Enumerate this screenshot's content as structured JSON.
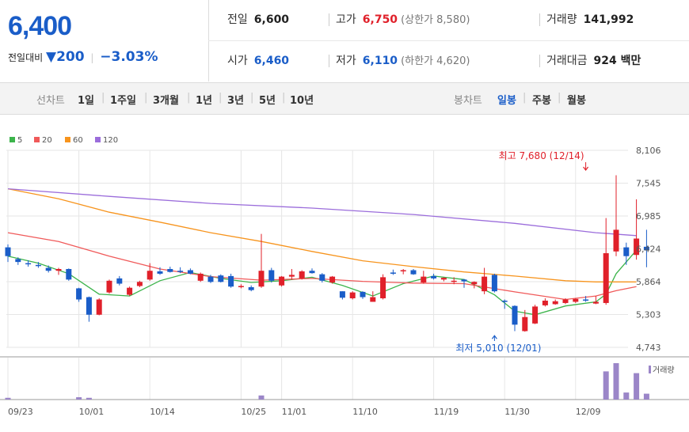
{
  "quote": {
    "price": "6,400",
    "change_label": "전일대비",
    "change_arrow": "▼",
    "change_value": "200",
    "change_pct": "−3.03%",
    "prev_label": "전일",
    "prev_value": "6,600",
    "high_label": "고가",
    "high_value": "6,750",
    "upper_limit": "(상한가 8,580)",
    "volume_label": "거래량",
    "volume_value": "141,992",
    "open_label": "시가",
    "open_value": "6,460",
    "low_label": "저가",
    "low_value": "6,110",
    "lower_limit": "(하한가 4,620)",
    "amount_label": "거래대금",
    "amount_value": "924 백만"
  },
  "toolbar": {
    "line_chart_label": "선차트",
    "periods": [
      "1일",
      "1주일",
      "3개월",
      "1년",
      "3년",
      "5년",
      "10년"
    ],
    "candle_label": "봉차트",
    "candle_types": [
      "일봉",
      "주봉",
      "월봉"
    ],
    "active_candle": "일봉"
  },
  "colors": {
    "up": "#e0202a",
    "down": "#1a5dc8",
    "ma5": "#3cb44b",
    "ma20": "#f05a5a",
    "ma60": "#f7941d",
    "ma120": "#9b6ddb",
    "volume": "#9b86c8"
  },
  "chart_data": {
    "type": "candlestick",
    "legend": [
      "5",
      "20",
      "60",
      "120"
    ],
    "y_ticks": [
      "8,106",
      "7,545",
      "6,985",
      "6,424",
      "5,864",
      "5,303",
      "4,743"
    ],
    "ylim": [
      4743,
      8106
    ],
    "x_ticks": [
      "09/23",
      "10/01",
      "10/14",
      "10/25",
      "11/01",
      "11/10",
      "11/19",
      "11/30",
      "12/09"
    ],
    "x_tick_index": [
      0,
      7,
      14,
      23,
      27,
      34,
      42,
      49,
      56
    ],
    "volume_label": "거래량",
    "annotations": [
      {
        "text": "최고 7,680 (12/14)",
        "index": 57,
        "value": 7680,
        "pos": "above"
      },
      {
        "text": "최저 5,010 (12/01)",
        "index": 48,
        "value": 5010,
        "pos": "below"
      }
    ],
    "candles": [
      {
        "o": 6450,
        "h": 6500,
        "l": 6200,
        "c": 6300
      },
      {
        "o": 6250,
        "h": 6280,
        "l": 6150,
        "c": 6200
      },
      {
        "o": 6180,
        "h": 6230,
        "l": 6120,
        "c": 6170
      },
      {
        "o": 6150,
        "h": 6200,
        "l": 6100,
        "c": 6140
      },
      {
        "o": 6100,
        "h": 6140,
        "l": 6020,
        "c": 6050
      },
      {
        "o": 6050,
        "h": 6100,
        "l": 5980,
        "c": 6080
      },
      {
        "o": 6080,
        "h": 6090,
        "l": 5880,
        "c": 5900
      },
      {
        "o": 5750,
        "h": 5760,
        "l": 5520,
        "c": 5560
      },
      {
        "o": 5600,
        "h": 5610,
        "l": 5180,
        "c": 5300
      },
      {
        "o": 5300,
        "h": 5580,
        "l": 5290,
        "c": 5560
      },
      {
        "o": 5680,
        "h": 5900,
        "l": 5660,
        "c": 5880
      },
      {
        "o": 5920,
        "h": 5960,
        "l": 5800,
        "c": 5830
      },
      {
        "o": 5640,
        "h": 5780,
        "l": 5620,
        "c": 5760
      },
      {
        "o": 5790,
        "h": 5880,
        "l": 5770,
        "c": 5860
      },
      {
        "o": 5900,
        "h": 6180,
        "l": 5880,
        "c": 6050
      },
      {
        "o": 6040,
        "h": 6110,
        "l": 5980,
        "c": 6000
      },
      {
        "o": 6080,
        "h": 6120,
        "l": 6020,
        "c": 6030
      },
      {
        "o": 6050,
        "h": 6110,
        "l": 6010,
        "c": 6030
      },
      {
        "o": 6060,
        "h": 6090,
        "l": 5990,
        "c": 6000
      },
      {
        "o": 5880,
        "h": 6020,
        "l": 5860,
        "c": 6000
      },
      {
        "o": 5950,
        "h": 5980,
        "l": 5840,
        "c": 5860
      },
      {
        "o": 5970,
        "h": 5990,
        "l": 5850,
        "c": 5860
      },
      {
        "o": 5960,
        "h": 6000,
        "l": 5760,
        "c": 5780
      },
      {
        "o": 5780,
        "h": 5820,
        "l": 5750,
        "c": 5790
      },
      {
        "o": 5770,
        "h": 5800,
        "l": 5700,
        "c": 5720
      },
      {
        "o": 5780,
        "h": 6680,
        "l": 5760,
        "c": 6050
      },
      {
        "o": 6060,
        "h": 6100,
        "l": 5850,
        "c": 5880
      },
      {
        "o": 5800,
        "h": 5960,
        "l": 5780,
        "c": 5950
      },
      {
        "o": 5950,
        "h": 6080,
        "l": 5900,
        "c": 5980
      },
      {
        "o": 5920,
        "h": 6060,
        "l": 5900,
        "c": 6040
      },
      {
        "o": 6050,
        "h": 6090,
        "l": 6000,
        "c": 6010
      },
      {
        "o": 5990,
        "h": 6010,
        "l": 5850,
        "c": 5880
      },
      {
        "o": 5850,
        "h": 5960,
        "l": 5830,
        "c": 5950
      },
      {
        "o": 5700,
        "h": 5700,
        "l": 5560,
        "c": 5590
      },
      {
        "o": 5580,
        "h": 5700,
        "l": 5560,
        "c": 5680
      },
      {
        "o": 5690,
        "h": 5700,
        "l": 5570,
        "c": 5600
      },
      {
        "o": 5520,
        "h": 5700,
        "l": 5520,
        "c": 5600
      },
      {
        "o": 5580,
        "h": 5990,
        "l": 5560,
        "c": 5940
      },
      {
        "o": 6020,
        "h": 6070,
        "l": 5980,
        "c": 6000
      },
      {
        "o": 6050,
        "h": 6080,
        "l": 5990,
        "c": 6060
      },
      {
        "o": 6060,
        "h": 6080,
        "l": 5980,
        "c": 5990
      },
      {
        "o": 5850,
        "h": 6050,
        "l": 5830,
        "c": 5950
      },
      {
        "o": 5960,
        "h": 6000,
        "l": 5900,
        "c": 5920
      },
      {
        "o": 5900,
        "h": 5940,
        "l": 5870,
        "c": 5930
      },
      {
        "o": 5860,
        "h": 5940,
        "l": 5820,
        "c": 5880
      },
      {
        "o": 5900,
        "h": 5910,
        "l": 5760,
        "c": 5870
      },
      {
        "o": 5820,
        "h": 5870,
        "l": 5750,
        "c": 5860
      },
      {
        "o": 5700,
        "h": 6100,
        "l": 5650,
        "c": 5950
      },
      {
        "o": 5980,
        "h": 6000,
        "l": 5680,
        "c": 5700
      },
      {
        "o": 5540,
        "h": 5560,
        "l": 5400,
        "c": 5520
      },
      {
        "o": 5450,
        "h": 5460,
        "l": 5020,
        "c": 5130
      },
      {
        "o": 5020,
        "h": 5380,
        "l": 5010,
        "c": 5260
      },
      {
        "o": 5150,
        "h": 5470,
        "l": 5140,
        "c": 5440
      },
      {
        "o": 5460,
        "h": 5580,
        "l": 5440,
        "c": 5540
      },
      {
        "o": 5480,
        "h": 5560,
        "l": 5470,
        "c": 5530
      },
      {
        "o": 5500,
        "h": 5580,
        "l": 5480,
        "c": 5560
      },
      {
        "o": 5520,
        "h": 5580,
        "l": 5500,
        "c": 5570
      },
      {
        "o": 5560,
        "h": 5620,
        "l": 5520,
        "c": 5540
      },
      {
        "o": 5490,
        "h": 5620,
        "l": 5480,
        "c": 5520
      },
      {
        "o": 5500,
        "h": 6950,
        "l": 5470,
        "c": 6350
      },
      {
        "o": 6380,
        "h": 7680,
        "l": 6300,
        "c": 6750
      },
      {
        "o": 6450,
        "h": 6530,
        "l": 6150,
        "c": 6300
      },
      {
        "o": 6320,
        "h": 7270,
        "l": 6240,
        "c": 6600
      },
      {
        "o": 6460,
        "h": 6750,
        "l": 6110,
        "c": 6400
      }
    ],
    "volumes": [
      3,
      0,
      0,
      0,
      0,
      0,
      0,
      4,
      3,
      0,
      0,
      0,
      0,
      0,
      0,
      0,
      0,
      0,
      0,
      0,
      0,
      0,
      0,
      0,
      0,
      7,
      0,
      0,
      0,
      0,
      0,
      0,
      0,
      0,
      0,
      0,
      0,
      0,
      0,
      0,
      0,
      0,
      0,
      0,
      0,
      0,
      0,
      0,
      0,
      0,
      0,
      0,
      0,
      0,
      0,
      0,
      0,
      0,
      0,
      48,
      62,
      12,
      45,
      10
    ],
    "ma_series": [
      {
        "name": "5",
        "points": [
          [
            0,
            6300
          ],
          [
            3,
            6180
          ],
          [
            6,
            6000
          ],
          [
            9,
            5650
          ],
          [
            12,
            5620
          ],
          [
            15,
            5880
          ],
          [
            18,
            6020
          ],
          [
            21,
            5920
          ],
          [
            24,
            5850
          ],
          [
            27,
            5880
          ],
          [
            30,
            5940
          ],
          [
            33,
            5800
          ],
          [
            36,
            5620
          ],
          [
            39,
            5830
          ],
          [
            42,
            5960
          ],
          [
            45,
            5900
          ],
          [
            48,
            5640
          ],
          [
            50,
            5360
          ],
          [
            52,
            5300
          ],
          [
            55,
            5450
          ],
          [
            58,
            5520
          ],
          [
            59,
            5650
          ],
          [
            60,
            6000
          ],
          [
            61,
            6200
          ],
          [
            62,
            6400
          ]
        ]
      },
      {
        "name": "20",
        "points": [
          [
            0,
            6700
          ],
          [
            5,
            6550
          ],
          [
            10,
            6300
          ],
          [
            15,
            6080
          ],
          [
            20,
            5950
          ],
          [
            25,
            5890
          ],
          [
            30,
            5920
          ],
          [
            35,
            5870
          ],
          [
            40,
            5840
          ],
          [
            45,
            5830
          ],
          [
            50,
            5690
          ],
          [
            55,
            5560
          ],
          [
            58,
            5620
          ],
          [
            60,
            5710
          ],
          [
            62,
            5780
          ]
        ]
      },
      {
        "name": "60",
        "points": [
          [
            0,
            7450
          ],
          [
            5,
            7280
          ],
          [
            10,
            7050
          ],
          [
            15,
            6880
          ],
          [
            20,
            6700
          ],
          [
            25,
            6550
          ],
          [
            30,
            6380
          ],
          [
            35,
            6220
          ],
          [
            40,
            6120
          ],
          [
            45,
            6030
          ],
          [
            50,
            5960
          ],
          [
            55,
            5880
          ],
          [
            58,
            5860
          ],
          [
            62,
            5860
          ]
        ]
      },
      {
        "name": "120",
        "points": [
          [
            0,
            7450
          ],
          [
            10,
            7320
          ],
          [
            20,
            7200
          ],
          [
            30,
            7120
          ],
          [
            40,
            7010
          ],
          [
            50,
            6860
          ],
          [
            58,
            6700
          ],
          [
            62,
            6650
          ]
        ]
      }
    ]
  }
}
